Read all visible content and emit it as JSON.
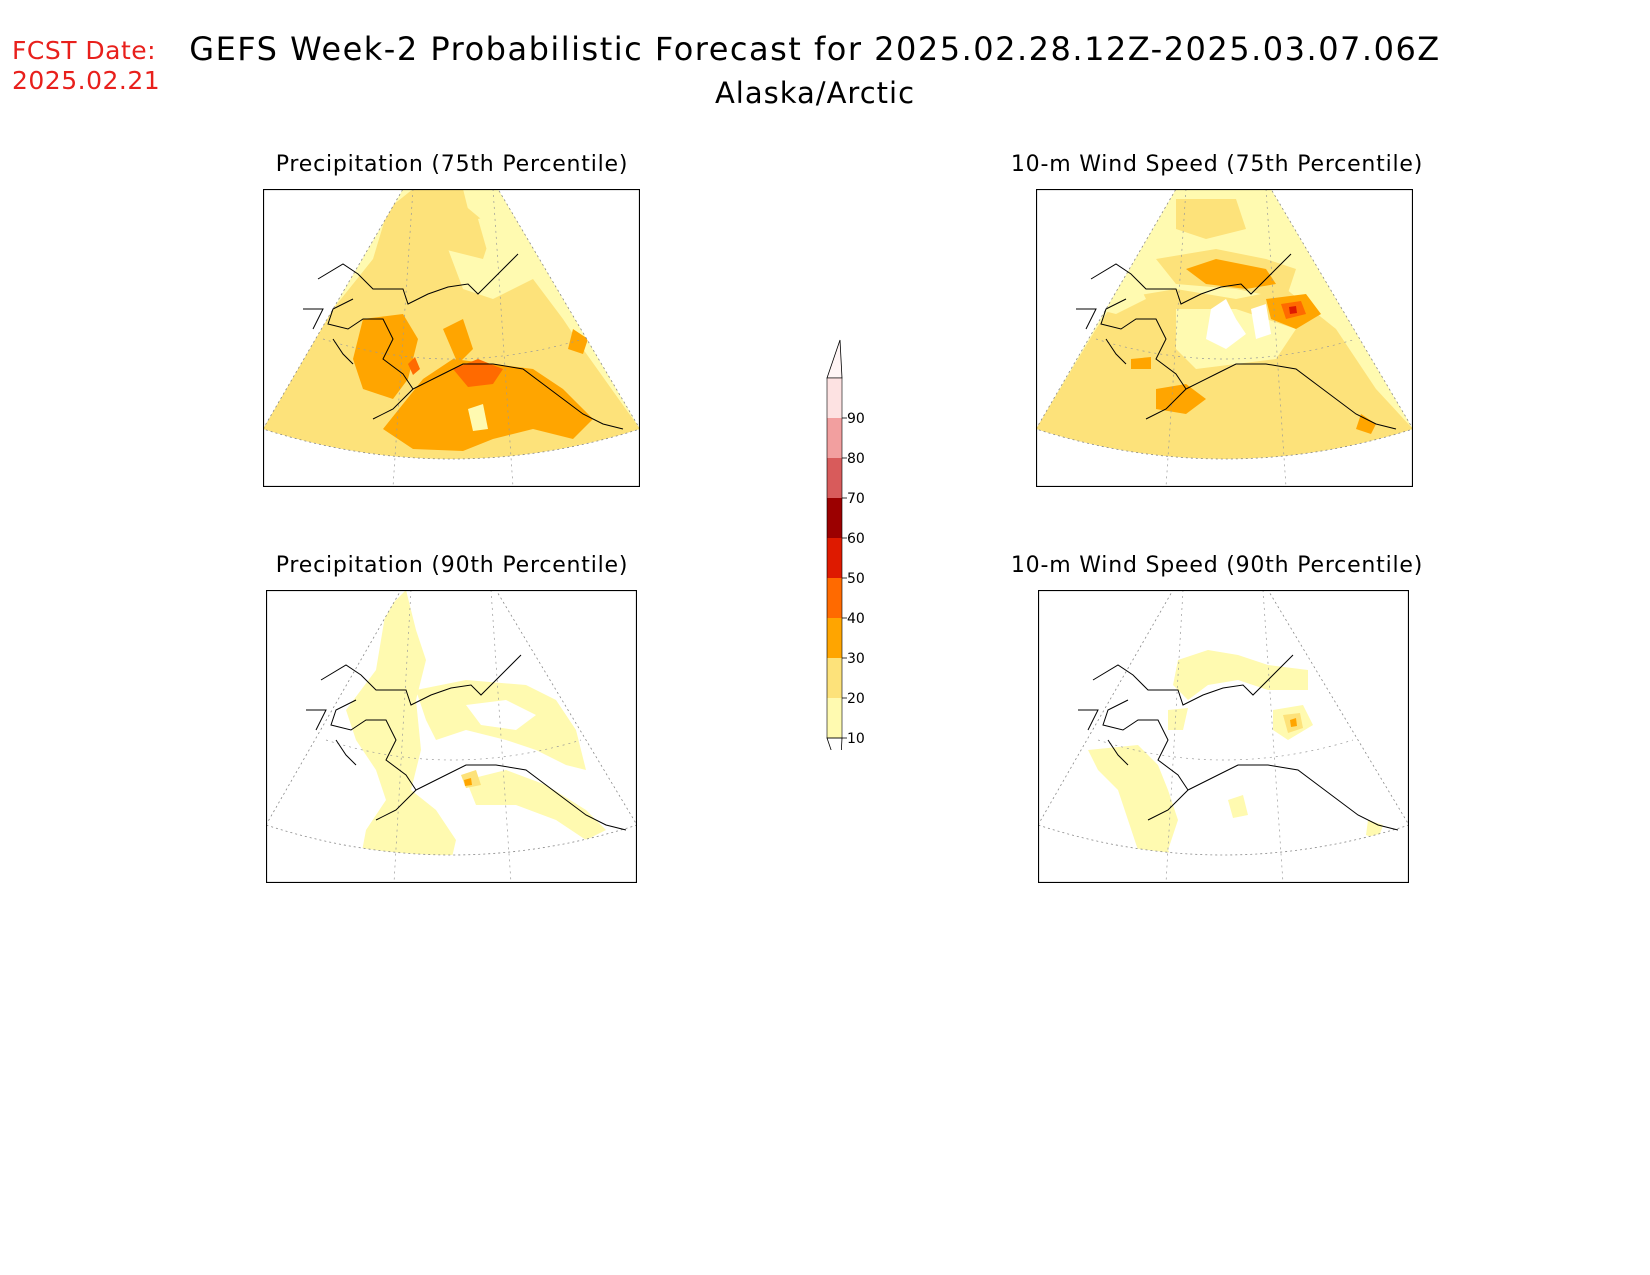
{
  "header": {
    "fcst_label": "FCST Date:",
    "fcst_date": "2025.02.21",
    "title": "GEFS Week-2 Probabilistic Forecast for 2025.02.28.12Z-2025.03.07.06Z",
    "region": "Alaska/Arctic"
  },
  "panels": [
    {
      "id": "precip-75",
      "title": "Precipitation (75th Percentile)"
    },
    {
      "id": "wind-75",
      "title": "10-m Wind Speed (75th Percentile)"
    },
    {
      "id": "precip-90",
      "title": "Precipitation (90th Percentile)"
    },
    {
      "id": "wind-90",
      "title": "10-m Wind Speed (90th Percentile)"
    }
  ],
  "colorbar": {
    "levels": [
      "90",
      "80",
      "70",
      "60",
      "50",
      "40",
      "30",
      "20",
      "10"
    ],
    "colors": [
      "#fde2e2",
      "#f29f9f",
      "#d85b5b",
      "#9b0000",
      "#de1a00",
      "#ff6a00",
      "#ffa500",
      "#fde27a",
      "#fffab0"
    ]
  },
  "palette": {
    "p10": "#fffab0",
    "p20": "#fde27a",
    "p30": "#ffa500",
    "p40": "#ff6a00",
    "p50": "#de1a00",
    "fcst_text": "#e8201c"
  }
}
